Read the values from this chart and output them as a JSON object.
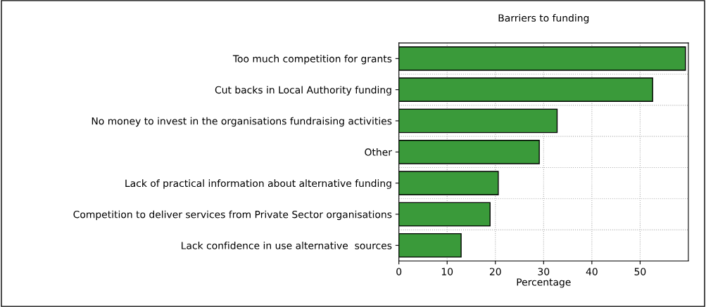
{
  "chart_data": {
    "type": "bar",
    "orientation": "horizontal",
    "title": "Barriers to funding",
    "xlabel": "Percentage",
    "categories": [
      "Too much competition for grants",
      "Cut backs in Local Authority funding",
      "No money to invest in the organisations fundraising activities",
      "Other",
      "Lack of practical information about alternative funding",
      "Competition to deliver services from Private Sector organisations",
      "Lack confidence in use alternative  sources"
    ],
    "values": [
      59.4,
      52.6,
      32.8,
      29.1,
      20.6,
      18.9,
      12.9
    ],
    "color": "#3a9a3a",
    "xlim": [
      0,
      60
    ],
    "xticks": [
      0,
      10,
      20,
      30,
      40,
      50
    ],
    "grid": true
  }
}
